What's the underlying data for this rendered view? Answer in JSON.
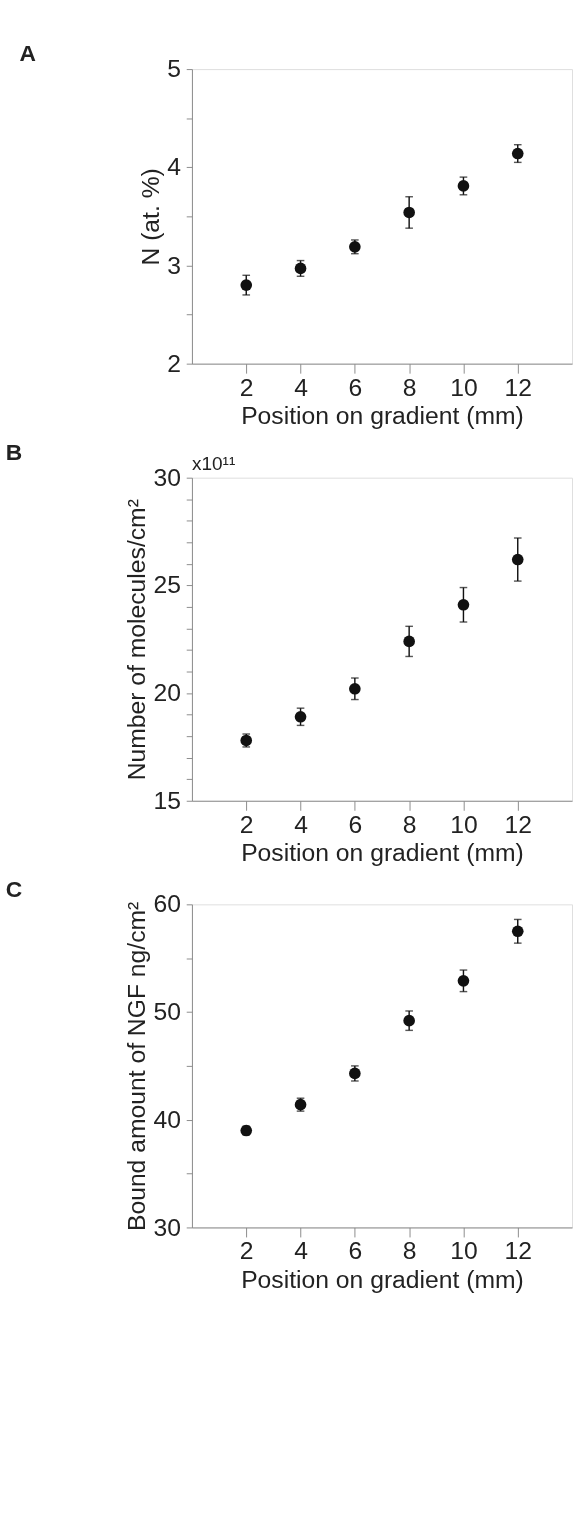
{
  "chart_data": [
    {
      "type": "scatter",
      "title": "A",
      "xlabel": "Position on gradient (mm)",
      "ylabel": "N (at. %)",
      "x": [
        2,
        4,
        6,
        8,
        10,
        12
      ],
      "marker": "circle",
      "grid": false,
      "xlim": [
        0,
        14
      ],
      "xticks": [
        2,
        4,
        6,
        8,
        10,
        12
      ],
      "ylim": [
        2,
        5
      ],
      "yticks": [
        2,
        {
          "value": 2.5,
          "label": null
        },
        3,
        {
          "value": 3.5,
          "label": null
        },
        4,
        {
          "value": 4.5,
          "label": null
        },
        5
      ],
      "series": [
        {
          "color": "#111111",
          "values": [
            2.8,
            2.97,
            3.19,
            3.54,
            3.81,
            4.14
          ],
          "errors": [
            0.1,
            0.08,
            0.07,
            0.16,
            0.09,
            0.09
          ]
        }
      ]
    },
    {
      "type": "scatter",
      "title": "B",
      "xlabel": "Position on gradient (mm)",
      "ylabel": "Number of molecules/cm²",
      "annotations": [
        "x10¹¹"
      ],
      "x": [
        2,
        4,
        6,
        8,
        10,
        12
      ],
      "marker": "circle",
      "grid": false,
      "xlim": [
        0,
        14
      ],
      "xticks": [
        2,
        4,
        6,
        8,
        10,
        12
      ],
      "ylim": [
        15,
        30
      ],
      "yticks": [
        15,
        {
          "value": 16,
          "label": null
        },
        {
          "value": 17,
          "label": null
        },
        {
          "value": 18,
          "label": null
        },
        {
          "value": 19,
          "label": null
        },
        20,
        {
          "value": 21,
          "label": null
        },
        {
          "value": 22,
          "label": null
        },
        {
          "value": 23,
          "label": null
        },
        {
          "value": 24,
          "label": null
        },
        25,
        {
          "value": 26,
          "label": null
        },
        {
          "value": 27,
          "label": null
        },
        {
          "value": 28,
          "label": null
        },
        {
          "value": 29,
          "label": null
        },
        30
      ],
      "series": [
        {
          "color": "#111111",
          "values": [
            17.8,
            18.9,
            20.2,
            22.4,
            24.1,
            26.2
          ],
          "errors": [
            0.3,
            0.4,
            0.5,
            0.7,
            0.8,
            1.0
          ]
        }
      ]
    },
    {
      "type": "scatter",
      "title": "C",
      "xlabel": "Position on gradient (mm)",
      "ylabel": "Bound amount of NGF ng/cm²",
      "x": [
        2,
        4,
        6,
        8,
        10,
        12
      ],
      "marker": "circle",
      "grid": false,
      "xlim": [
        0,
        14
      ],
      "xticks": [
        2,
        4,
        6,
        8,
        10,
        12
      ],
      "ylim": [
        30,
        60
      ],
      "yticks": [
        30,
        {
          "value": 35,
          "label": null
        },
        40,
        {
          "value": 45,
          "label": null
        },
        50,
        {
          "value": 55,
          "label": null
        },
        60
      ],
      "series": [
        {
          "color": "#111111",
          "values": [
            39.0,
            41.4,
            44.3,
            49.2,
            52.9,
            57.5
          ],
          "errors": [
            0.4,
            0.6,
            0.7,
            0.9,
            1.0,
            1.1
          ]
        }
      ]
    }
  ]
}
